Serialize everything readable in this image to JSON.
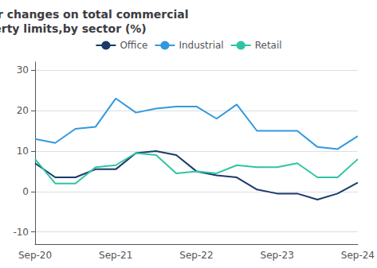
{
  "chart_data": {
    "type": "line",
    "title": "Year-on-year changes on total commercial\nproperty limits,by sector (%)",
    "categories": [
      "Sep-20",
      null,
      null,
      null,
      "Sep-21",
      null,
      null,
      null,
      "Sep-22",
      null,
      null,
      null,
      "Sep-23",
      null,
      null,
      null,
      "Sep-24"
    ],
    "series": [
      {
        "name": "Office",
        "color": "#1a3a6b",
        "values": [
          7,
          3.5,
          3.5,
          5.5,
          5.5,
          9.5,
          10,
          9,
          5,
          4,
          3.5,
          0.5,
          -0.5,
          -0.5,
          -2,
          -0.5,
          2.2
        ]
      },
      {
        "name": "Industrial",
        "color": "#3399dd",
        "values": [
          13,
          12,
          15.5,
          16,
          23,
          19.5,
          20.5,
          21,
          21,
          18,
          21.5,
          15,
          15,
          15,
          11,
          10.5,
          13.7
        ]
      },
      {
        "name": "Retail",
        "color": "#2ec4a5",
        "values": [
          8,
          2,
          2,
          6,
          6.5,
          9.5,
          9,
          4.5,
          5,
          4.5,
          6.5,
          6,
          6,
          7,
          3.5,
          3.5,
          8.0
        ]
      }
    ],
    "ylim": [
      -13,
      32
    ],
    "yticks": [
      -10,
      0,
      10,
      20,
      30
    ],
    "grid": true,
    "legend": "top"
  }
}
